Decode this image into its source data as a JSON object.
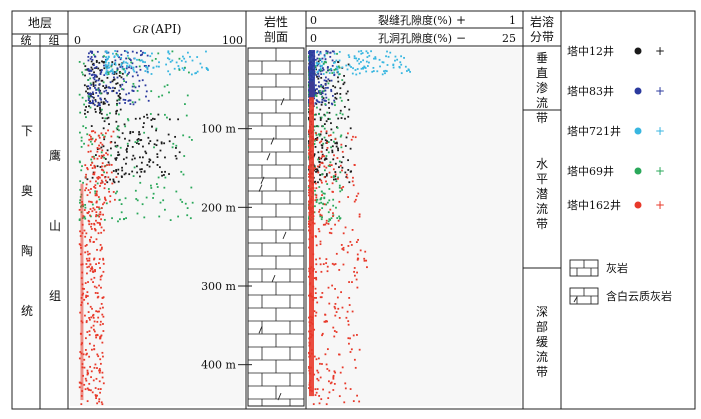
{
  "header": {
    "strata": "地层",
    "system": "统",
    "group": "组",
    "gr_label_italic": "GR",
    "gr_label_unit": "(API)",
    "gr_min": "0",
    "gr_max": "100",
    "litho_title_1": "岩性",
    "litho_title_2": "剖面",
    "fracture_label": "裂缝孔隙度(%)",
    "fracture_min": "0",
    "fracture_max": "1",
    "fracture_sign": "+",
    "vug_label": "孔洞孔隙度(%)",
    "vug_min": "0",
    "vug_max": "25",
    "vug_sign": "−",
    "karst_title_1": "岩溶",
    "karst_title_2": "分带"
  },
  "strat_series_chars": [
    "下",
    "奥",
    "陶",
    "统"
  ],
  "strat_group_chars": [
    "鹰",
    "山",
    "组"
  ],
  "karst_zones": [
    {
      "name": "垂直渗流带",
      "chars": [
        "垂",
        "直",
        "渗",
        "流",
        "带"
      ]
    },
    {
      "name": "水平潜流带",
      "chars": [
        "水",
        "平",
        "潜",
        "流",
        "带"
      ]
    },
    {
      "name": "深部缓流带",
      "chars": [
        "深",
        "部",
        "缓",
        "流",
        "带"
      ]
    }
  ],
  "depth_marks": [
    "100 m",
    "200 m",
    "300 m",
    "400 m"
  ],
  "legend": {
    "wells": [
      {
        "name": "塔中12井",
        "color": "#1a1a1a"
      },
      {
        "name": "塔中83井",
        "color": "#2b3a9e"
      },
      {
        "name": "塔中721井",
        "color": "#38b6e0"
      },
      {
        "name": "塔中69井",
        "color": "#2aa85a"
      },
      {
        "name": "塔中162井",
        "color": "#e8392a"
      }
    ],
    "litho": [
      {
        "name": "灰岩"
      },
      {
        "name": "含白云质灰岩"
      }
    ]
  },
  "chart_data": {
    "type": "scatter",
    "depth_axis": {
      "unit": "m",
      "ticks": [
        100,
        200,
        300,
        400
      ],
      "range": [
        0,
        450
      ]
    },
    "panels": [
      {
        "name": "GR",
        "xlim": [
          0,
          100
        ],
        "x_unit": "API"
      },
      {
        "name": "fracture_porosity",
        "xlim": [
          0,
          1
        ],
        "x_unit": "%"
      },
      {
        "name": "vug_porosity",
        "xlim": [
          0,
          25
        ],
        "x_unit": "%"
      }
    ],
    "series": [
      {
        "name": "塔中12井",
        "color": "#1a1a1a",
        "depth_range": [
          10,
          170
        ],
        "gr_range": [
          5,
          55
        ],
        "por_range": [
          0,
          5
        ]
      },
      {
        "name": "塔中83井",
        "color": "#2b3a9e",
        "depth_range": [
          0,
          70
        ],
        "gr_range": [
          10,
          45
        ],
        "por_range": [
          0,
          3
        ]
      },
      {
        "name": "塔中721井",
        "color": "#38b6e0",
        "depth_range": [
          0,
          30
        ],
        "gr_range": [
          20,
          80
        ],
        "por_range": [
          0,
          12
        ]
      },
      {
        "name": "塔中69井",
        "color": "#2aa85a",
        "depth_range": [
          0,
          220
        ],
        "gr_range": [
          5,
          70
        ],
        "por_range": [
          0,
          4
        ]
      },
      {
        "name": "塔中162井",
        "color": "#e8392a",
        "depth_range": [
          100,
          450
        ],
        "gr_range": [
          5,
          30
        ],
        "por_range": [
          0,
          6
        ]
      }
    ],
    "dolomitic_limestone_depths": [
      65,
      115,
      135,
      165,
      175,
      235,
      290,
      355,
      440
    ]
  }
}
